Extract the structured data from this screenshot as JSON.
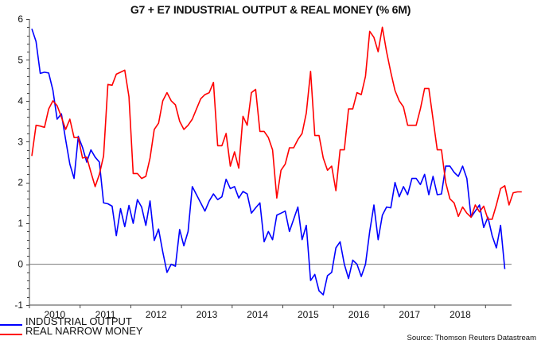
{
  "chart_data": {
    "type": "line",
    "title": "G7 + E7 INDUSTRIAL OUTPUT & REAL MONEY (% 6M)",
    "xlabel": "",
    "ylabel": "",
    "ylim": [
      -1,
      6
    ],
    "yticks": [
      "6",
      "5",
      "4",
      "3",
      "2",
      "1",
      "0",
      "-1"
    ],
    "ytick_values": [
      6,
      5,
      4,
      3,
      2,
      1,
      0,
      -1
    ],
    "xticks": [
      "2010",
      "2011",
      "2012",
      "2013",
      "2014",
      "2015",
      "2016",
      "2017",
      "2018"
    ],
    "x_start": "2010-02",
    "frequency": "monthly",
    "grid": false,
    "zero_line": true,
    "legend_position": "bottom-left",
    "series": [
      {
        "name": "INDUSTRIAL OUTPUT",
        "color": "#0000ff",
        "values": [
          5.76,
          5.45,
          4.67,
          4.7,
          4.68,
          4.26,
          3.55,
          3.68,
          3.05,
          2.45,
          2.1,
          3.13,
          2.86,
          2.5,
          2.8,
          2.62,
          2.5,
          1.5,
          1.48,
          1.42,
          0.7,
          1.36,
          0.92,
          1.44,
          1.0,
          1.58,
          1.4,
          0.95,
          1.55,
          0.58,
          0.86,
          0.3,
          -0.2,
          0.0,
          -0.05,
          0.85,
          0.45,
          0.8,
          1.9,
          1.7,
          1.5,
          1.3,
          1.55,
          1.72,
          1.58,
          1.65,
          2.08,
          1.85,
          1.9,
          1.62,
          1.78,
          1.72,
          1.25,
          1.38,
          1.5,
          0.55,
          0.8,
          0.6,
          1.2,
          1.25,
          1.3,
          0.8,
          1.1,
          1.4,
          0.6,
          0.95,
          -0.4,
          -0.25,
          -0.65,
          -0.75,
          -0.28,
          -0.2,
          0.4,
          0.55,
          0.0,
          -0.35,
          0.1,
          0.0,
          -0.3,
          0.0,
          0.8,
          1.45,
          0.6,
          1.2,
          1.4,
          1.38,
          2.0,
          1.65,
          1.9,
          1.7,
          2.1,
          2.1,
          1.95,
          2.2,
          1.7,
          2.15,
          1.7,
          1.72,
          2.4,
          2.4,
          2.25,
          2.15,
          2.4,
          2.1,
          1.15,
          1.3,
          1.45,
          0.9,
          1.15,
          0.7,
          0.4,
          0.95,
          -0.12
        ]
      },
      {
        "name": "REAL NARROW MONEY",
        "color": "#ff0000",
        "values": [
          2.65,
          3.4,
          3.38,
          3.35,
          3.8,
          4.0,
          3.88,
          3.6,
          3.3,
          3.55,
          3.1,
          3.1,
          2.6,
          2.62,
          2.25,
          1.9,
          2.2,
          2.65,
          4.4,
          4.38,
          4.65,
          4.7,
          4.75,
          4.1,
          2.22,
          2.22,
          2.1,
          2.15,
          2.6,
          3.3,
          3.45,
          4.0,
          4.2,
          4.0,
          3.9,
          3.5,
          3.3,
          3.4,
          3.55,
          3.8,
          4.05,
          4.15,
          4.2,
          4.45,
          2.9,
          2.9,
          3.2,
          2.4,
          2.75,
          2.35,
          3.62,
          3.4,
          4.2,
          4.28,
          3.25,
          3.25,
          3.1,
          2.8,
          1.62,
          2.3,
          2.45,
          2.85,
          2.85,
          3.05,
          3.2,
          3.7,
          4.72,
          3.15,
          3.15,
          2.6,
          2.3,
          2.4,
          1.8,
          2.8,
          2.8,
          3.8,
          3.8,
          4.2,
          4.15,
          4.6,
          5.7,
          5.55,
          5.2,
          5.8,
          5.2,
          4.7,
          4.25,
          4.0,
          3.85,
          3.4,
          3.4,
          3.4,
          3.8,
          4.3,
          4.3,
          3.55,
          2.8,
          2.8,
          2.0,
          1.6,
          1.5,
          1.17,
          1.4,
          1.25,
          1.15,
          1.45,
          1.28,
          1.42,
          1.1,
          1.1,
          1.45,
          1.85,
          1.92,
          1.45,
          1.75,
          1.77,
          1.77
        ]
      }
    ]
  },
  "legend": {
    "items": [
      {
        "label": "INDUSTRIAL OUTPUT",
        "color": "#0000ff"
      },
      {
        "label": "REAL NARROW MONEY",
        "color": "#ff0000"
      }
    ]
  },
  "source": "Source: Thomson Reuters Datastream"
}
